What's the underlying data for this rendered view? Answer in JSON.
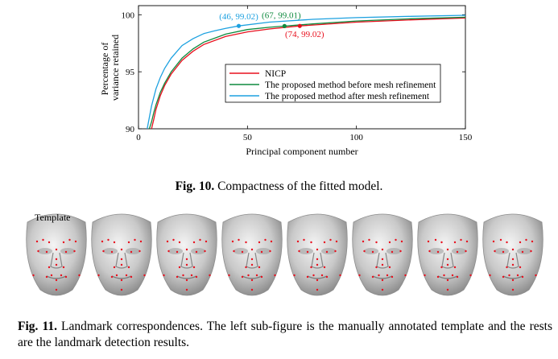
{
  "figure10": {
    "caption_label": "Fig. 10.",
    "caption_text": " Compactness of the fitted model.",
    "chart_data": {
      "type": "line",
      "title": "",
      "xlabel": "Principal component number",
      "ylabel": [
        "Percentage of",
        "variance retained"
      ],
      "xlim": [
        0,
        150
      ],
      "ylim": [
        90,
        100.8
      ],
      "xticks": [
        0,
        50,
        100,
        150
      ],
      "yticks": [
        90,
        95,
        100
      ],
      "grid": false,
      "legend_position": "lower-right",
      "series": [
        {
          "name": "NICP",
          "color": "#e8101e",
          "x": [
            6,
            7,
            8,
            10,
            12,
            15,
            20,
            25,
            30,
            40,
            50,
            60,
            74,
            80,
            100,
            125,
            150
          ],
          "y": [
            89.8,
            90.8,
            91.7,
            92.9,
            93.8,
            94.8,
            96.0,
            96.8,
            97.4,
            98.1,
            98.5,
            98.75,
            99.02,
            99.1,
            99.35,
            99.55,
            99.72
          ]
        },
        {
          "name": "The proposed method before mesh refinement",
          "color": "#0e8a3e",
          "x": [
            5,
            6,
            7,
            8,
            10,
            12,
            15,
            20,
            25,
            30,
            40,
            50,
            60,
            67,
            80,
            100,
            125,
            150
          ],
          "y": [
            89.8,
            90.6,
            91.4,
            92.1,
            93.2,
            94.0,
            95.0,
            96.2,
            97.0,
            97.6,
            98.3,
            98.7,
            98.9,
            99.01,
            99.2,
            99.45,
            99.65,
            99.78
          ]
        },
        {
          "name": "The proposed method after mesh refinement",
          "color": "#1da1e0",
          "x": [
            4,
            5,
            6,
            8,
            10,
            12,
            15,
            20,
            25,
            30,
            35,
            40,
            46,
            60,
            80,
            100,
            125,
            150
          ],
          "y": [
            89.9,
            91.0,
            92.0,
            93.5,
            94.5,
            95.3,
            96.2,
            97.3,
            97.9,
            98.35,
            98.6,
            98.8,
            99.02,
            99.35,
            99.6,
            99.75,
            99.86,
            99.95
          ]
        }
      ],
      "highlighted_points": [
        {
          "x": 46,
          "y": 99.02,
          "label": "(46, 99.02)",
          "color": "#1da1e0"
        },
        {
          "x": 67,
          "y": 99.01,
          "label": "(67, 99.01)",
          "color": "#0e8a3e"
        },
        {
          "x": 74,
          "y": 99.02,
          "label": "(74, 99.02)",
          "color": "#e8101e"
        }
      ]
    }
  },
  "figure11": {
    "caption_label": "Fig. 11.",
    "caption_text": " Landmark correspondences. The left sub-figure is the manually annotated template and the rests are the landmark detection results.",
    "template_label": "Template",
    "face_count": 8,
    "landmark_color": "#e8101e"
  }
}
